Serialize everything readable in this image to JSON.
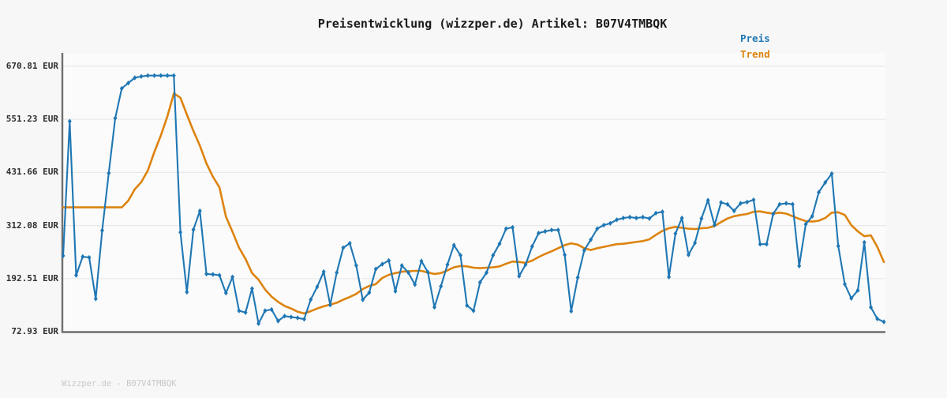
{
  "header": {
    "title": "Preisentwicklung (wizzper.de) Artikel: B07V4TMBQK"
  },
  "legend": {
    "items": [
      {
        "label": "Preis",
        "color": "#1f77b4"
      },
      {
        "label": "Trend",
        "color": "#dd830e"
      }
    ]
  },
  "footer": {
    "text": "Wizzper.de - B07V4TMBQK"
  },
  "chart_data": {
    "type": "line",
    "title": "Preisentwicklung (wizzper.de) Artikel: B07V4TMBQK",
    "currency": "EUR",
    "grid": true,
    "legend_position": "top-right",
    "y_axis": {
      "tick_labels": [
        "670.81 EUR",
        "551.23 EUR",
        "431.66 EUR",
        "312.08 EUR",
        "192.51 EUR",
        "72.93 EUR"
      ],
      "tick_values": [
        670.81,
        551.23,
        431.66,
        312.08,
        192.51,
        72.93
      ],
      "ylim": [
        72.93,
        670.81
      ]
    },
    "x_axis": {
      "tick_labels": []
    },
    "series": [
      {
        "name": "Preis",
        "color": "#1f77b4",
        "marker": "diamond",
        "values": [
          244,
          547,
          200,
          242,
          240,
          147,
          301,
          430,
          554,
          621,
          633,
          645,
          648,
          650,
          650,
          650,
          650,
          650,
          297,
          162,
          303,
          345,
          203,
          202,
          200,
          160,
          196,
          120,
          116,
          170,
          91,
          120,
          123,
          97,
          108,
          106,
          104,
          101,
          145,
          174,
          208,
          133,
          206,
          262,
          272,
          222,
          145,
          161,
          214,
          225,
          233,
          164,
          222,
          206,
          179,
          232,
          207,
          128,
          175,
          224,
          268,
          245,
          132,
          120,
          184,
          206,
          245,
          271,
          305,
          308,
          198,
          224,
          265,
          295,
          299,
          302,
          302,
          246,
          119,
          195,
          256,
          280,
          305,
          313,
          317,
          325,
          329,
          331,
          329,
          331,
          328,
          340,
          343,
          196,
          294,
          329,
          246,
          273,
          328,
          369,
          313,
          364,
          360,
          345,
          362,
          365,
          370,
          270,
          270,
          338,
          360,
          362,
          360,
          221,
          315,
          333,
          387,
          409,
          429,
          266,
          180,
          148,
          166,
          274,
          128,
          102,
          95
        ]
      },
      {
        "name": "Trend",
        "color": "#dd830e",
        "marker": "none",
        "values": [
          353,
          353,
          353,
          353,
          353,
          353,
          353,
          353,
          353,
          353,
          368,
          394,
          410,
          436,
          478,
          515,
          558,
          610,
          600,
          562,
          525,
          492,
          452,
          422,
          398,
          332,
          298,
          262,
          237,
          205,
          190,
          168,
          152,
          140,
          131,
          125,
          118,
          114,
          119,
          125,
          130,
          134,
          138,
          145,
          151,
          158,
          169,
          176,
          180,
          194,
          201,
          205,
          208,
          209,
          210,
          210,
          206,
          203,
          205,
          211,
          218,
          221,
          220,
          217,
          216,
          217,
          218,
          220,
          226,
          231,
          230,
          228,
          233,
          241,
          248,
          254,
          261,
          268,
          272,
          269,
          261,
          257,
          261,
          264,
          267,
          270,
          271,
          273,
          275,
          277,
          281,
          291,
          300,
          306,
          309,
          307,
          305,
          304,
          306,
          307,
          311,
          320,
          328,
          333,
          336,
          338,
          343,
          344,
          341,
          339,
          341,
          339,
          333,
          327,
          322,
          321,
          323,
          329,
          341,
          342,
          336,
          313,
          299,
          288,
          290,
          264,
          230
        ]
      }
    ]
  }
}
